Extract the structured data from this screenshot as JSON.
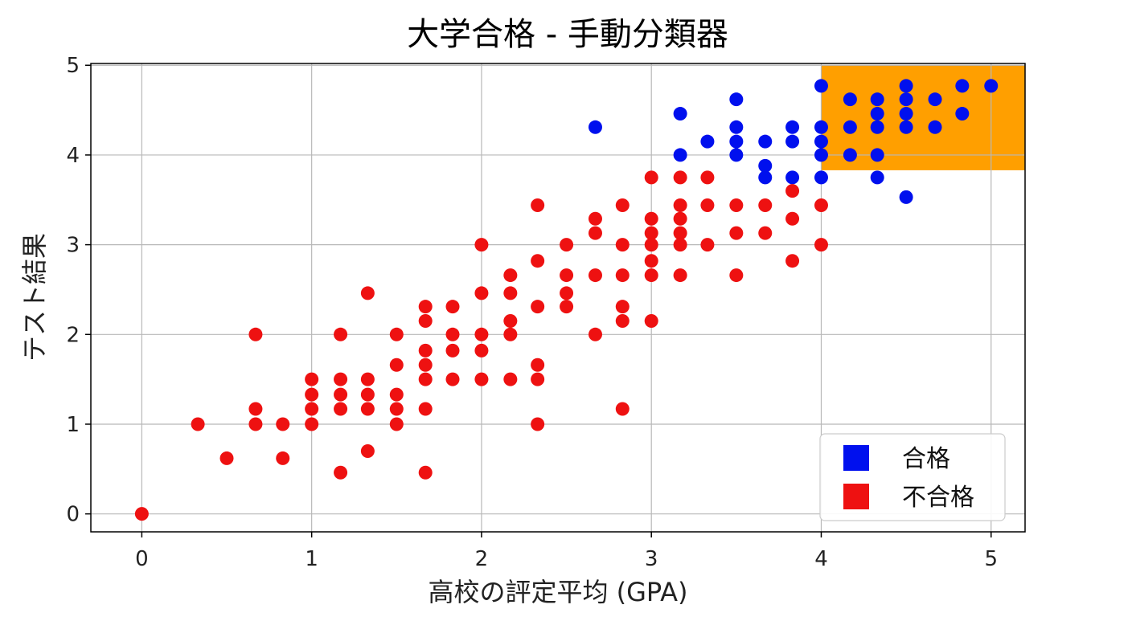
{
  "chart_data": {
    "type": "scatter",
    "title": "大学合格 - 手動分類器",
    "xlabel": "高校の評定平均 (GPA)",
    "ylabel": "テスト結果",
    "xlim": [
      -0.3,
      5.2
    ],
    "ylim": [
      -0.2,
      5.02
    ],
    "xticks": [
      "0",
      "1",
      "2",
      "3",
      "4",
      "5"
    ],
    "yticks": [
      "0",
      "1",
      "2",
      "3",
      "4",
      "5"
    ],
    "grid": true,
    "legend_position": "lower-right",
    "highlight_region": {
      "x": [
        4.0,
        5.2
      ],
      "y": [
        3.83,
        5.0
      ],
      "color": "#ff9f00"
    },
    "series": [
      {
        "name": "合格",
        "color": "#0010ee",
        "points": [
          [
            2.67,
            4.31
          ],
          [
            3.17,
            4.46
          ],
          [
            3.17,
            4.0
          ],
          [
            3.33,
            4.15
          ],
          [
            3.5,
            4.62
          ],
          [
            3.5,
            4.31
          ],
          [
            3.5,
            4.15
          ],
          [
            3.5,
            4.0
          ],
          [
            3.67,
            4.15
          ],
          [
            3.67,
            3.88
          ],
          [
            3.67,
            3.75
          ],
          [
            3.83,
            4.31
          ],
          [
            3.83,
            4.15
          ],
          [
            3.83,
            3.75
          ],
          [
            4.0,
            4.77
          ],
          [
            4.0,
            4.31
          ],
          [
            4.0,
            4.15
          ],
          [
            4.0,
            4.0
          ],
          [
            4.0,
            3.75
          ],
          [
            4.17,
            4.62
          ],
          [
            4.17,
            4.31
          ],
          [
            4.17,
            4.0
          ],
          [
            4.33,
            4.62
          ],
          [
            4.33,
            4.46
          ],
          [
            4.33,
            4.31
          ],
          [
            4.33,
            4.0
          ],
          [
            4.33,
            3.75
          ],
          [
            4.5,
            4.77
          ],
          [
            4.5,
            4.62
          ],
          [
            4.5,
            4.46
          ],
          [
            4.5,
            4.31
          ],
          [
            4.5,
            3.53
          ],
          [
            4.67,
            4.62
          ],
          [
            4.67,
            4.31
          ],
          [
            4.83,
            4.77
          ],
          [
            4.83,
            4.46
          ],
          [
            5.0,
            4.77
          ]
        ]
      },
      {
        "name": "不合格",
        "color": "#ee1111",
        "points": [
          [
            0.0,
            0.0
          ],
          [
            0.33,
            1.0
          ],
          [
            0.5,
            0.62
          ],
          [
            0.67,
            2.0
          ],
          [
            0.67,
            1.17
          ],
          [
            0.67,
            1.0
          ],
          [
            0.83,
            1.0
          ],
          [
            0.83,
            0.62
          ],
          [
            1.0,
            1.5
          ],
          [
            1.0,
            1.33
          ],
          [
            1.0,
            1.17
          ],
          [
            1.0,
            1.0
          ],
          [
            1.17,
            2.0
          ],
          [
            1.17,
            1.5
          ],
          [
            1.17,
            1.33
          ],
          [
            1.17,
            1.17
          ],
          [
            1.17,
            0.46
          ],
          [
            1.33,
            2.46
          ],
          [
            1.33,
            1.5
          ],
          [
            1.33,
            1.33
          ],
          [
            1.33,
            1.17
          ],
          [
            1.33,
            0.7
          ],
          [
            1.5,
            2.0
          ],
          [
            1.5,
            1.66
          ],
          [
            1.5,
            1.33
          ],
          [
            1.5,
            1.17
          ],
          [
            1.5,
            1.0
          ],
          [
            1.67,
            2.31
          ],
          [
            1.67,
            2.15
          ],
          [
            1.67,
            1.82
          ],
          [
            1.67,
            1.66
          ],
          [
            1.67,
            1.5
          ],
          [
            1.67,
            1.17
          ],
          [
            1.67,
            0.46
          ],
          [
            1.83,
            2.31
          ],
          [
            1.83,
            2.0
          ],
          [
            1.83,
            1.82
          ],
          [
            1.83,
            1.5
          ],
          [
            2.0,
            3.0
          ],
          [
            2.0,
            2.46
          ],
          [
            2.0,
            2.0
          ],
          [
            2.0,
            1.82
          ],
          [
            2.0,
            1.5
          ],
          [
            2.17,
            2.66
          ],
          [
            2.17,
            2.46
          ],
          [
            2.17,
            2.15
          ],
          [
            2.17,
            2.0
          ],
          [
            2.17,
            1.5
          ],
          [
            2.33,
            3.44
          ],
          [
            2.33,
            2.82
          ],
          [
            2.33,
            2.31
          ],
          [
            2.33,
            1.66
          ],
          [
            2.33,
            1.5
          ],
          [
            2.33,
            1.0
          ],
          [
            2.5,
            3.0
          ],
          [
            2.5,
            2.66
          ],
          [
            2.5,
            2.46
          ],
          [
            2.5,
            2.31
          ],
          [
            2.67,
            3.29
          ],
          [
            2.67,
            3.13
          ],
          [
            2.67,
            2.66
          ],
          [
            2.67,
            2.0
          ],
          [
            2.83,
            3.44
          ],
          [
            2.83,
            3.0
          ],
          [
            2.83,
            2.66
          ],
          [
            2.83,
            2.31
          ],
          [
            2.83,
            2.15
          ],
          [
            2.83,
            1.17
          ],
          [
            3.0,
            3.75
          ],
          [
            3.0,
            3.29
          ],
          [
            3.0,
            3.13
          ],
          [
            3.0,
            3.0
          ],
          [
            3.0,
            2.82
          ],
          [
            3.0,
            2.66
          ],
          [
            3.0,
            2.15
          ],
          [
            3.17,
            3.75
          ],
          [
            3.17,
            3.44
          ],
          [
            3.17,
            3.29
          ],
          [
            3.17,
            3.13
          ],
          [
            3.17,
            3.0
          ],
          [
            3.17,
            2.66
          ],
          [
            3.33,
            3.75
          ],
          [
            3.33,
            3.44
          ],
          [
            3.33,
            3.0
          ],
          [
            3.5,
            3.44
          ],
          [
            3.5,
            3.13
          ],
          [
            3.5,
            2.66
          ],
          [
            3.67,
            3.44
          ],
          [
            3.67,
            3.13
          ],
          [
            3.83,
            3.6
          ],
          [
            3.83,
            3.29
          ],
          [
            3.83,
            2.82
          ],
          [
            4.0,
            3.44
          ],
          [
            4.0,
            3.0
          ]
        ]
      }
    ]
  }
}
